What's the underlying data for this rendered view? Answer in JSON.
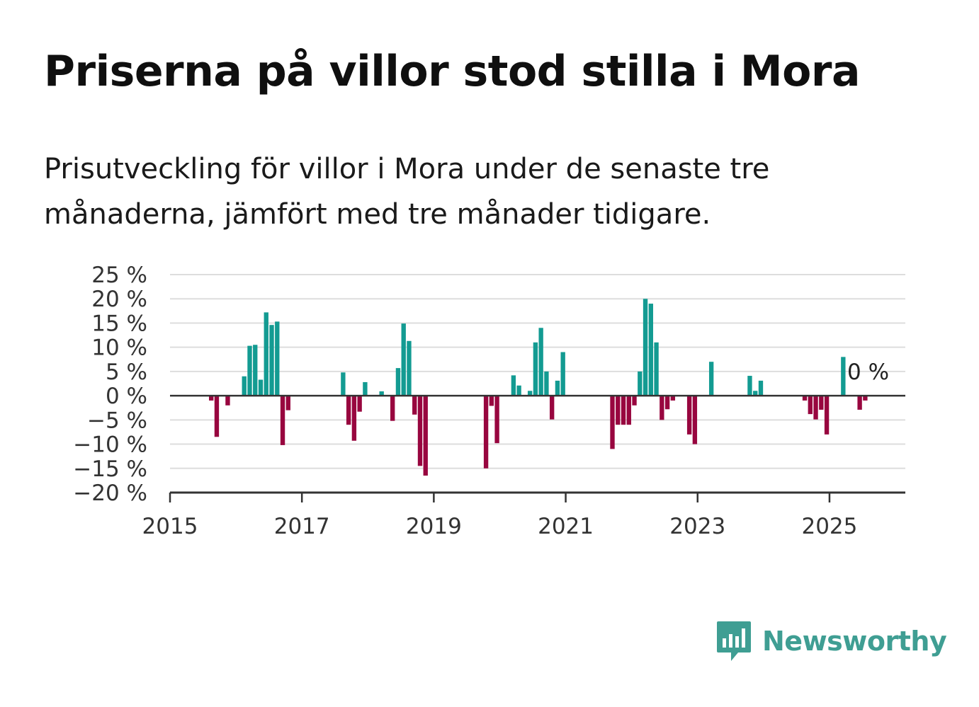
{
  "title": "Priserna på villor stod stilla i Mora",
  "subtitle": "Prisutveckling för villor i Mora under de senaste tre månaderna, jämfört med tre månader tidigare.",
  "brand": "Newsworthy",
  "colors": {
    "positive": "#139b92",
    "negative": "#98063f",
    "grid": "#dddddd",
    "axis": "#333333",
    "brand": "#3f9e93"
  },
  "chart_data": {
    "type": "bar",
    "y_tick_labels": [
      "25 %",
      "20 %",
      "15 %",
      "10 %",
      "5 %",
      "0 %",
      "−5 %",
      "−10 %",
      "−15 %",
      "−20 %"
    ],
    "y_ticks": [
      25,
      20,
      15,
      10,
      5,
      0,
      -5,
      -10,
      -15,
      -20
    ],
    "ylim": [
      -20,
      25
    ],
    "x_tick_labels": [
      "2015",
      "2017",
      "2019",
      "2021",
      "2023",
      "2025"
    ],
    "x_ticks": [
      2015,
      2017,
      2019,
      2021,
      2023,
      2025
    ],
    "xlim": [
      2015.0,
      2026.15
    ],
    "value_label": "0 %",
    "series": [
      {
        "x": [
          "2015-08",
          "2015-09",
          "2015-11",
          "2016-02",
          "2016-03",
          "2016-04",
          "2016-05",
          "2016-06",
          "2016-07",
          "2016-08",
          "2016-09",
          "2016-10",
          "2017-08",
          "2017-09",
          "2017-10",
          "2017-11",
          "2017-12",
          "2018-03",
          "2018-05",
          "2018-06",
          "2018-07",
          "2018-08",
          "2018-09",
          "2018-10",
          "2018-11",
          "2019-10",
          "2019-11",
          "2019-12",
          "2020-03",
          "2020-04",
          "2020-06",
          "2020-07",
          "2020-08",
          "2020-09",
          "2020-10",
          "2020-11",
          "2020-12",
          "2021-09",
          "2021-10",
          "2021-11",
          "2021-12",
          "2022-01",
          "2022-02",
          "2022-03",
          "2022-04",
          "2022-05",
          "2022-06",
          "2022-07",
          "2022-08",
          "2022-11",
          "2022-12",
          "2023-03",
          "2023-10",
          "2023-11",
          "2023-12",
          "2024-08",
          "2024-09",
          "2024-10",
          "2024-11",
          "2024-12",
          "2025-03",
          "2025-06",
          "2025-07",
          "2025-08"
        ],
        "values": [
          -1,
          -8.5,
          -2,
          4,
          10.3,
          10.5,
          3.3,
          17.2,
          14.6,
          15.3,
          -10.2,
          -3,
          4.8,
          -6,
          -9.3,
          -3.3,
          2.8,
          0.9,
          -5.2,
          5.7,
          14.9,
          11.3,
          -3.9,
          -14.5,
          -16.5,
          -15,
          -2.1,
          -9.8,
          4.2,
          2.1,
          1,
          11,
          14,
          5,
          -4.9,
          3.1,
          9,
          -11,
          -6,
          -6,
          -6,
          -2,
          5,
          20,
          19,
          11,
          -5,
          -2.8,
          -1,
          -8,
          -10,
          7,
          4.1,
          1,
          3.1,
          -1,
          -3.8,
          -4.9,
          -2.9,
          -8,
          8,
          -2.9,
          -1,
          0
        ]
      }
    ]
  }
}
